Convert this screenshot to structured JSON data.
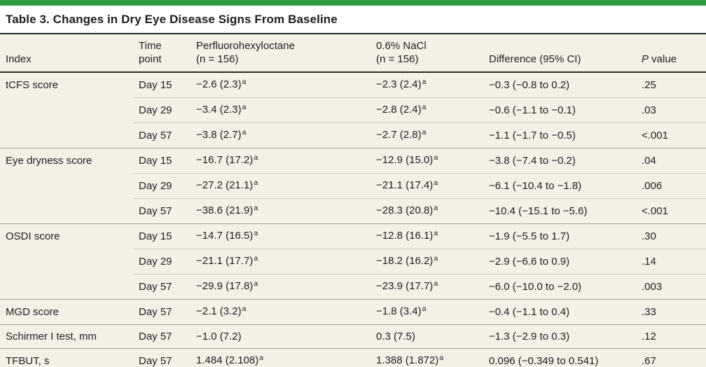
{
  "title": "Table 3. Changes in Dry Eye Disease Signs From Baseline",
  "header": {
    "index": "Index",
    "time_line1": "Time",
    "time_line2": "point",
    "drug_line1": "Perfluorohexyloctane",
    "drug_line2": "(n = 156)",
    "control_line1": "0.6% NaCl",
    "control_line2": "(n = 156)",
    "difference": "Difference (95% CI)",
    "p_italic": "P",
    "p_rest": " value"
  },
  "rows": [
    {
      "index": "tCFS score",
      "time": "Day 15",
      "drug": "−2.6 (2.3)",
      "drug_sup": "a",
      "control": "−2.3 (2.4)",
      "control_sup": "a",
      "difference": "−0.3 (−0.8 to 0.2)",
      "p": ".25",
      "group_start": true
    },
    {
      "index": "",
      "time": "Day 29",
      "drug": "−3.4 (2.3)",
      "drug_sup": "a",
      "control": "−2.8 (2.4)",
      "control_sup": "a",
      "difference": "−0.6 (−1.1 to −0.1)",
      "p": ".03",
      "group_start": false
    },
    {
      "index": "",
      "time": "Day 57",
      "drug": "−3.8 (2.7)",
      "drug_sup": "a",
      "control": "−2.7 (2.8)",
      "control_sup": "a",
      "difference": "−1.1 (−1.7 to −0.5)",
      "p": "<.001",
      "group_start": false
    },
    {
      "index": "Eye dryness score",
      "time": "Day 15",
      "drug": "−16.7 (17.2)",
      "drug_sup": "a",
      "control": "−12.9 (15.0)",
      "control_sup": "a",
      "difference": "−3.8 (−7.4 to −0.2)",
      "p": ".04",
      "group_start": true
    },
    {
      "index": "",
      "time": "Day 29",
      "drug": "−27.2 (21.1)",
      "drug_sup": "a",
      "control": "−21.1 (17.4)",
      "control_sup": "a",
      "difference": "−6.1 (−10.4 to −1.8)",
      "p": ".006",
      "group_start": false
    },
    {
      "index": "",
      "time": "Day 57",
      "drug": "−38.6 (21.9)",
      "drug_sup": "a",
      "control": "−28.3 (20.8)",
      "control_sup": "a",
      "difference": "−10.4 (−15.1 to −5.6)",
      "p": "<.001",
      "group_start": false
    },
    {
      "index": "OSDI score",
      "time": "Day 15",
      "drug": "−14.7 (16.5)",
      "drug_sup": "a",
      "control": "−12.8 (16.1)",
      "control_sup": "a",
      "difference": "−1.9 (−5.5 to 1.7)",
      "p": ".30",
      "group_start": true
    },
    {
      "index": "",
      "time": "Day 29",
      "drug": "−21.1 (17.7)",
      "drug_sup": "a",
      "control": "−18.2 (16.2)",
      "control_sup": "a",
      "difference": "−2.9 (−6.6 to 0.9)",
      "p": ".14",
      "group_start": false
    },
    {
      "index": "",
      "time": "Day 57",
      "drug": "−29.9 (17.8)",
      "drug_sup": "a",
      "control": "−23.9 (17.7)",
      "control_sup": "a",
      "difference": "−6.0 (−10.0 to −2.0)",
      "p": ".003",
      "group_start": false
    },
    {
      "index": "MGD score",
      "time": "Day 57",
      "drug": "−2.1 (3.2)",
      "drug_sup": "a",
      "control": "−1.8 (3.4)",
      "control_sup": "a",
      "difference": "−0.4 (−1.1 to 0.4)",
      "p": ".33",
      "group_start": true
    },
    {
      "index": "Schirmer I test, mm",
      "time": "Day 57",
      "drug": "−1.0 (7.2)",
      "drug_sup": "",
      "control": "0.3 (7.5)",
      "control_sup": "",
      "difference": "−1.3 (−2.9 to 0.3)",
      "p": ".12",
      "group_start": true
    },
    {
      "index": "TFBUT, s",
      "time": "Day 57",
      "drug": "1.484 (2.108)",
      "drug_sup": "a",
      "control": "1.388 (1.872)",
      "control_sup": "a",
      "difference": "0.096 (−0.349 to 0.541)",
      "p": ".67",
      "group_start": true
    }
  ],
  "colors": {
    "accent_green": "#2f9e41",
    "table_background": "#f3f1e6",
    "text": "#1e1d1b",
    "rule_dark": "#2a2a26",
    "divider_group": "#a7a49a",
    "divider_row": "#cbc9bd"
  }
}
